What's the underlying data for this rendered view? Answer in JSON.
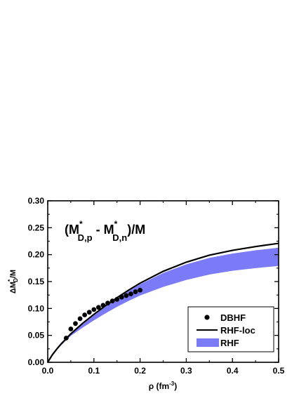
{
  "chart_data": {
    "type": "line",
    "title": "",
    "annotation": {
      "open": "(M",
      "sup1": "*",
      "sub1": "D,p",
      "minus": " - M",
      "sup2": "*",
      "sub2": "D,n",
      "close": ")/M"
    },
    "xlabel": {
      "prefix": "ρ (fm",
      "sup": "-3",
      "suffix": ")"
    },
    "ylabel": {
      "prefix": "ΔM",
      "sup": "*",
      "sub": "D",
      "suffix": "/M"
    },
    "xlim": [
      0.0,
      0.5
    ],
    "ylim": [
      0.0,
      0.3
    ],
    "xticks": [
      "0.0",
      "0.1",
      "0.2",
      "0.3",
      "0.4",
      "0.5"
    ],
    "yticks": [
      "0.00",
      "0.05",
      "0.10",
      "0.15",
      "0.20",
      "0.25",
      "0.30"
    ],
    "grid": false,
    "legend_position": "bottom-right",
    "series": [
      {
        "name": "DBHF",
        "kind": "scatter",
        "color": "#000000",
        "x": [
          0.04,
          0.05,
          0.06,
          0.07,
          0.08,
          0.09,
          0.1,
          0.11,
          0.12,
          0.13,
          0.14,
          0.15,
          0.16,
          0.17,
          0.18,
          0.19,
          0.2
        ],
        "y": [
          0.045,
          0.062,
          0.072,
          0.081,
          0.088,
          0.093,
          0.098,
          0.102,
          0.106,
          0.11,
          0.114,
          0.117,
          0.121,
          0.124,
          0.127,
          0.131,
          0.134
        ]
      },
      {
        "name": "RHF-loc",
        "kind": "line",
        "color": "#000000",
        "x": [
          0.0,
          0.01,
          0.02,
          0.03,
          0.05,
          0.075,
          0.1,
          0.125,
          0.15,
          0.175,
          0.2,
          0.25,
          0.3,
          0.35,
          0.4,
          0.45,
          0.5
        ],
        "y": [
          0.0,
          0.014,
          0.025,
          0.035,
          0.053,
          0.072,
          0.089,
          0.105,
          0.12,
          0.134,
          0.147,
          0.169,
          0.186,
          0.199,
          0.208,
          0.215,
          0.221
        ]
      },
      {
        "name": "RHF",
        "kind": "band",
        "color": "#7b7bf7",
        "x": [
          0.0,
          0.02,
          0.05,
          0.075,
          0.1,
          0.125,
          0.15,
          0.175,
          0.2,
          0.25,
          0.3,
          0.35,
          0.4,
          0.45,
          0.5
        ],
        "lower": [
          0.0,
          0.024,
          0.049,
          0.064,
          0.078,
          0.091,
          0.103,
          0.114,
          0.124,
          0.14,
          0.153,
          0.163,
          0.17,
          0.175,
          0.179
        ],
        "upper": [
          0.0,
          0.025,
          0.052,
          0.07,
          0.087,
          0.103,
          0.118,
          0.132,
          0.145,
          0.166,
          0.182,
          0.194,
          0.202,
          0.208,
          0.213
        ]
      }
    ]
  }
}
